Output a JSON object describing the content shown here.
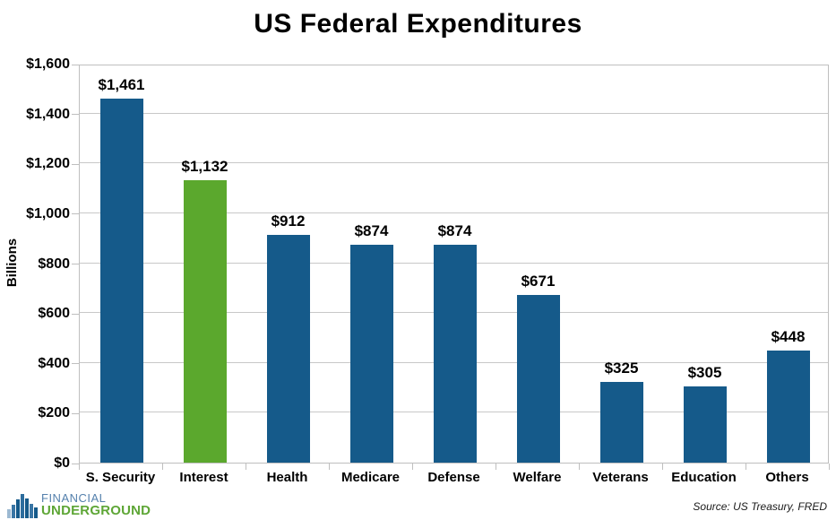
{
  "chart_data": {
    "type": "bar",
    "title": "US Federal Expenditures",
    "ylabel": "Billions",
    "xlabel": "",
    "categories": [
      "S. Security",
      "Interest",
      "Health",
      "Medicare",
      "Defense",
      "Welfare",
      "Veterans",
      "Education",
      "Others"
    ],
    "values": [
      1461,
      1132,
      912,
      874,
      874,
      671,
      325,
      305,
      448
    ],
    "data_labels": [
      "$1,461",
      "$1,132",
      "$912",
      "$874",
      "$874",
      "$671",
      "$325",
      "$305",
      "$448"
    ],
    "bar_default_color": "#155A8A",
    "bar_highlight": {
      "index": 1,
      "color": "#5BA82D"
    },
    "ylim": [
      0,
      1600
    ],
    "ytick_step": 200,
    "ytick_labels": [
      "$0",
      "$200",
      "$400",
      "$600",
      "$800",
      "$1,000",
      "$1,200",
      "$1,400",
      "$1,600"
    ],
    "grid": true,
    "gridline_color": "#c8c8c8",
    "axis_color": "#bfbfbf",
    "legend": "none"
  },
  "footer": {
    "logo_icon": "bar-chart-skyline-icon",
    "logo_line1": "FINANCIAL",
    "logo_line2": "UNDERGROUND",
    "logo_line1_color": "#5581AD",
    "logo_line2_color": "#5EA636",
    "source": "Source: US Treasury, FRED"
  }
}
